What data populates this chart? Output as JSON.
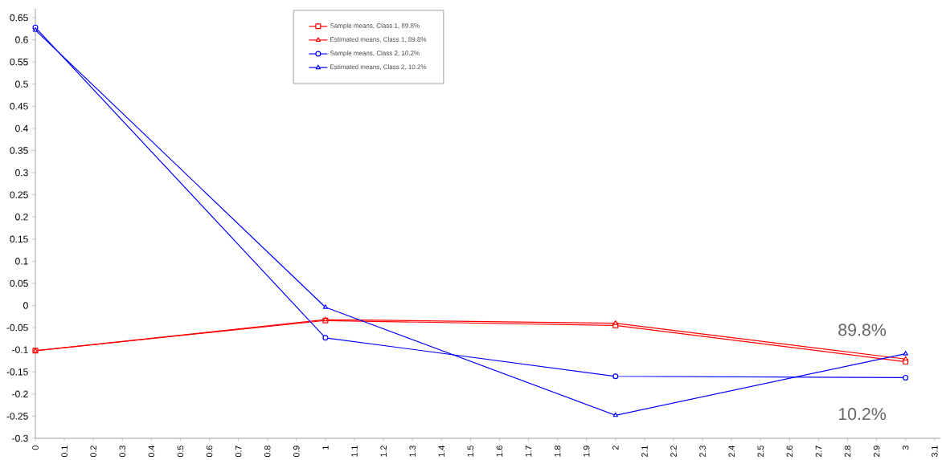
{
  "chart_data": {
    "type": "line",
    "x": [
      0,
      1,
      2,
      3
    ],
    "series": [
      {
        "name": "Sample means, Class 1, 89.8%",
        "color": "#ff0000",
        "marker": "square",
        "values": [
          -0.102,
          -0.034,
          -0.045,
          -0.127
        ]
      },
      {
        "name": "Estimated means, Class 1, 89.8%",
        "color": "#ff0000",
        "marker": "triangle",
        "values": [
          -0.102,
          -0.032,
          -0.04,
          -0.121
        ]
      },
      {
        "name": "Sample means, Class 2, 10.2%",
        "color": "#0000ff",
        "marker": "circle",
        "values": [
          0.628,
          -0.073,
          -0.16,
          -0.163
        ]
      },
      {
        "name": "Estimated means, Class 2, 10.2%",
        "color": "#0000ff",
        "marker": "triangle",
        "values": [
          0.622,
          -0.004,
          -0.248,
          -0.109
        ]
      }
    ],
    "xlim": [
      0,
      3.12
    ],
    "ylim": [
      -0.3,
      0.67
    ],
    "xticks": [
      0,
      0.1,
      0.2,
      0.3,
      0.4,
      0.5,
      0.6,
      0.7,
      0.8,
      0.9,
      1,
      1.1,
      1.2,
      1.3,
      1.4,
      1.5,
      1.6,
      1.7,
      1.8,
      1.9,
      2,
      2.1,
      2.2,
      2.3,
      2.4,
      2.5,
      2.6,
      2.7,
      2.8,
      2.9,
      3,
      3.1
    ],
    "yticks": [
      -0.3,
      -0.25,
      -0.2,
      -0.15,
      -0.1,
      -0.05,
      0,
      0.05,
      0.1,
      0.15,
      0.2,
      0.25,
      0.3,
      0.35,
      0.4,
      0.45,
      0.5,
      0.55,
      0.6,
      0.65
    ],
    "annotations": [
      "89.8%",
      "10.2%"
    ],
    "legend": "top",
    "grid": false,
    "line_style": "solid"
  }
}
